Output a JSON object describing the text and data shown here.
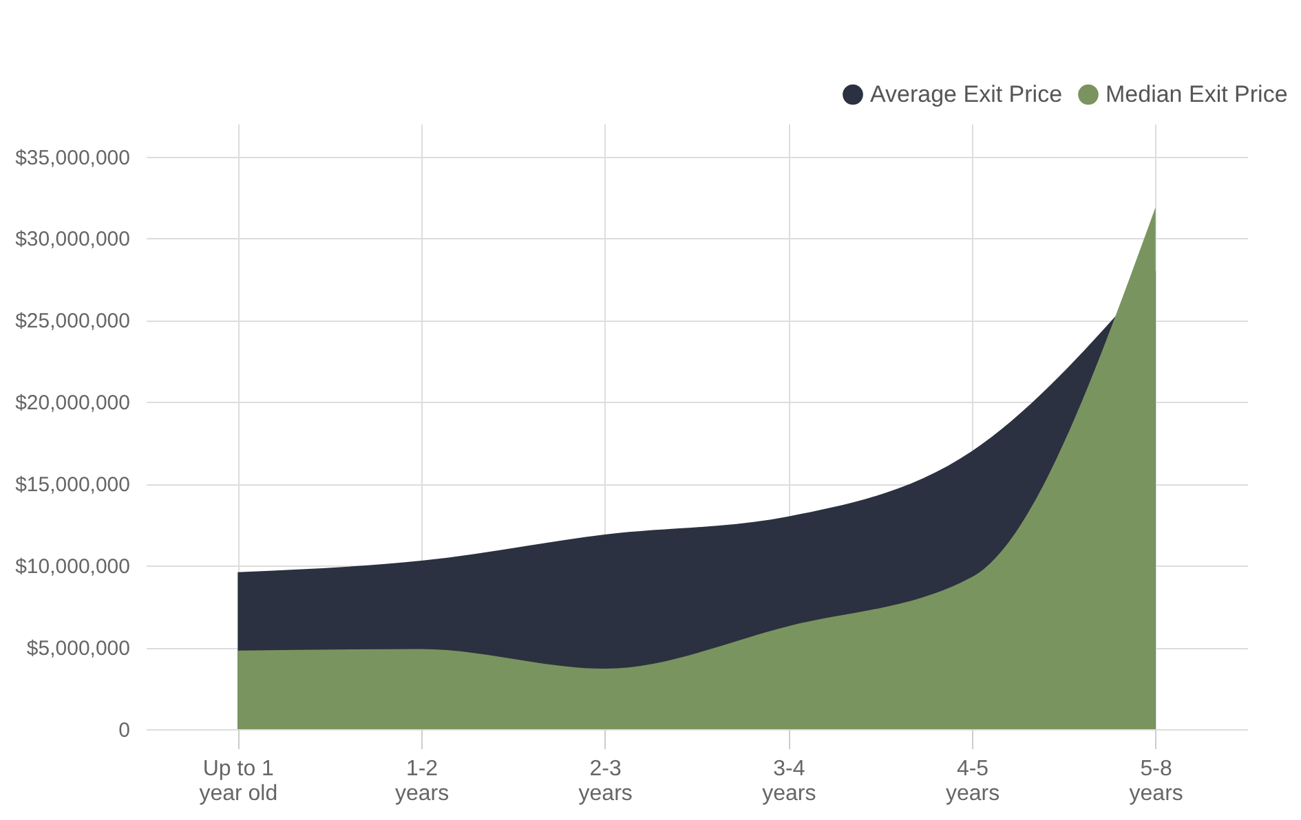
{
  "chart_data": {
    "type": "area",
    "categories": [
      "Up to 1\nyear old",
      "1-2\nyears",
      "2-3\nyears",
      "3-4\nyears",
      "4-5\nyears",
      "5-8\nyears"
    ],
    "series": [
      {
        "name": "Average Exit Price",
        "color": "#2b3140",
        "values": [
          9600000,
          10300000,
          11900000,
          13000000,
          17000000,
          28000000
        ]
      },
      {
        "name": "Median Exit Price",
        "color": "#7a9460",
        "values": [
          4800000,
          4900000,
          3700000,
          6300000,
          9300000,
          31900000
        ]
      }
    ],
    "ylim": [
      0,
      37000000
    ],
    "yticks": [
      0,
      {
        "value": 5000000,
        "label": "$5,000,000"
      },
      {
        "value": 10000000,
        "label": "$10,000,000"
      },
      {
        "value": 15000000,
        "label": "$15,000,000"
      },
      {
        "value": 20000000,
        "label": "$20,000,000"
      },
      {
        "value": 25000000,
        "label": "$25,000,000"
      },
      {
        "value": 30000000,
        "label": "$30,000,000"
      },
      {
        "value": 35000000,
        "label": "$35,000,000"
      }
    ],
    "grid": true,
    "legend": "top right"
  }
}
